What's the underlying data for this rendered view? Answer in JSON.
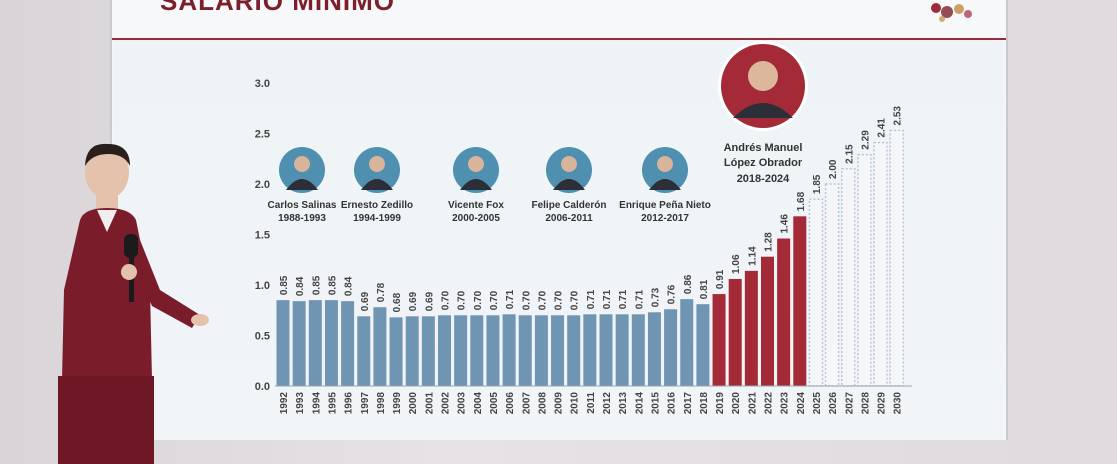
{
  "header": {
    "title": "SALARIO MÍNIMO"
  },
  "chart_data": {
    "type": "bar",
    "title": "SALARIO MÍNIMO",
    "ylim": [
      0,
      3.0
    ],
    "yticks": [
      "0.0",
      "0.5",
      "1.0",
      "1.5",
      "2.0",
      "2.5",
      "3.0"
    ],
    "categories": [
      "1992",
      "1993",
      "1994",
      "1995",
      "1996",
      "1997",
      "1998",
      "1999",
      "2000",
      "2001",
      "2002",
      "2003",
      "2004",
      "2005",
      "2006",
      "2007",
      "2008",
      "2009",
      "2010",
      "2011",
      "2012",
      "2013",
      "2014",
      "2015",
      "2016",
      "2017",
      "2018",
      "2019",
      "2020",
      "2021",
      "2022",
      "2023",
      "2024",
      "2025",
      "2026",
      "2027",
      "2028",
      "2029",
      "2030"
    ],
    "values": [
      0.85,
      0.84,
      0.85,
      0.85,
      0.84,
      0.69,
      0.78,
      0.68,
      0.69,
      0.69,
      0.7,
      0.7,
      0.7,
      0.7,
      0.71,
      0.7,
      0.7,
      0.7,
      0.7,
      0.71,
      0.71,
      0.71,
      0.71,
      0.73,
      0.76,
      0.86,
      0.81,
      0.91,
      1.06,
      1.14,
      1.28,
      1.46,
      1.68,
      1.85,
      2.0,
      2.15,
      2.29,
      2.41,
      2.53
    ],
    "value_labels": [
      "0.85",
      "0.84",
      "0.85",
      "0.85",
      "0.84",
      "0.69",
      "0.78",
      "0.68",
      "0.69",
      "0.69",
      "0.70",
      "0.70",
      "0.70",
      "0.70",
      "0.71",
      "0.70",
      "0.70",
      "0.70",
      "0.70",
      "0.71",
      "0.71",
      "0.71",
      "0.71",
      "0.73",
      "0.76",
      "0.86",
      "0.81",
      "0.91",
      "1.06",
      "1.14",
      "1.28",
      "1.46",
      "1.68",
      "1.85",
      "2.00",
      "2.15",
      "2.29",
      "2.41",
      "2.53"
    ],
    "bar_kind": [
      "past",
      "past",
      "past",
      "past",
      "past",
      "past",
      "past",
      "past",
      "past",
      "past",
      "past",
      "past",
      "past",
      "past",
      "past",
      "past",
      "past",
      "past",
      "past",
      "past",
      "past",
      "past",
      "past",
      "past",
      "past",
      "past",
      "past",
      "amlo",
      "amlo",
      "amlo",
      "amlo",
      "amlo",
      "amlo",
      "proj",
      "proj",
      "proj",
      "proj",
      "proj",
      "proj"
    ],
    "colors": {
      "past": "#6f95b3",
      "amlo": "#a32a36",
      "proj_fill": "#f4f6fa",
      "proj_stroke": "#b9c2d4",
      "axis_text": "#444444",
      "photo_ring": "#4f8fb0"
    },
    "presidents": [
      {
        "name": "Carlos Salinas",
        "years": "1988-1993"
      },
      {
        "name": "Ernesto Zedillo",
        "years": "1994-1999"
      },
      {
        "name": "Vicente Fox",
        "years": "2000-2005"
      },
      {
        "name": "Felipe Calderón",
        "years": "2006-2011"
      },
      {
        "name": "Enrique Peña Nieto",
        "years": "2012-2017"
      },
      {
        "name_line1": "Andrés Manuel",
        "name_line2": "López Obrador",
        "years": "2018-2024"
      }
    ]
  }
}
